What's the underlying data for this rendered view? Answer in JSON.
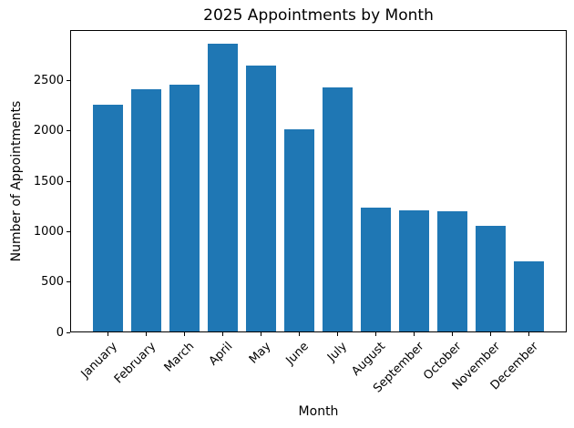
{
  "chart_data": {
    "type": "bar",
    "title": "2025 Appointments by Month",
    "xlabel": "Month",
    "ylabel": "Number of Appointments",
    "categories": [
      "January",
      "February",
      "March",
      "April",
      "May",
      "June",
      "July",
      "August",
      "September",
      "October",
      "November",
      "December"
    ],
    "values": [
      2250,
      2405,
      2450,
      2860,
      2640,
      2010,
      2425,
      1230,
      1205,
      1195,
      1050,
      700
    ],
    "ylim": [
      0,
      3000
    ],
    "yticks": [
      0,
      500,
      1000,
      1500,
      2000,
      2500
    ],
    "bar_color": "#1f77b4",
    "grid": false,
    "legend": false,
    "background_color": "#ffffff",
    "text_color": "#000000"
  }
}
